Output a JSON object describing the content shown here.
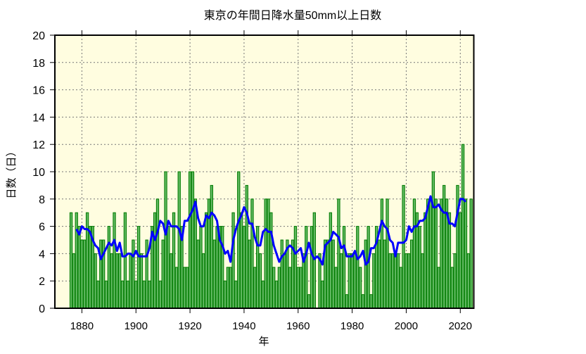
{
  "chart_data": {
    "type": "bar",
    "title": "東京の年間日降水量50mm以上日数",
    "xlabel": "年",
    "ylabel": "日数（日）",
    "xlim": [
      1870,
      2025
    ],
    "ylim": [
      0,
      20
    ],
    "grid": true,
    "x_ticks": [
      1880,
      1900,
      1920,
      1940,
      1960,
      1980,
      2000,
      2020
    ],
    "y_ticks": [
      0,
      2,
      4,
      6,
      8,
      10,
      12,
      14,
      16,
      18,
      20
    ],
    "colors": {
      "background": "#fffde0",
      "bar_fill": "#5fb85f",
      "bar_edge": "#007a00",
      "trend_line": "#0000ff"
    },
    "start_year": 1876,
    "values": [
      7,
      4,
      7,
      6,
      5,
      5,
      7,
      6,
      6,
      4,
      2,
      5,
      5,
      2,
      6,
      4,
      7,
      4,
      4,
      2,
      7,
      2,
      4,
      5,
      2,
      6,
      4,
      2,
      5,
      2,
      6,
      7,
      8,
      2,
      5,
      10,
      6,
      4,
      7,
      3,
      10,
      6,
      3,
      3,
      10,
      10,
      8,
      5,
      6,
      4,
      7,
      8,
      9,
      5,
      6,
      6,
      6,
      2,
      3,
      3,
      7,
      2,
      10,
      7,
      6,
      9,
      5,
      8,
      3,
      6,
      4,
      2,
      8,
      8,
      7,
      3,
      2,
      3,
      5,
      4,
      5,
      3,
      5,
      6,
      3,
      3,
      4,
      6,
      1,
      6,
      7,
      0,
      4,
      2,
      5,
      5,
      7,
      5,
      3,
      8,
      4,
      6,
      1,
      4,
      4,
      4,
      6,
      3,
      1,
      5,
      6,
      1,
      4,
      6,
      5,
      8,
      5,
      8,
      4,
      4,
      4,
      4,
      3,
      9,
      4,
      4,
      5,
      8,
      7,
      6,
      4,
      7,
      8,
      8,
      10,
      8,
      3,
      8,
      9,
      8,
      7,
      3,
      4,
      9,
      7,
      12,
      8,
      4,
      8
    ],
    "trend": {
      "type": "moving-average",
      "window": 5
    }
  }
}
